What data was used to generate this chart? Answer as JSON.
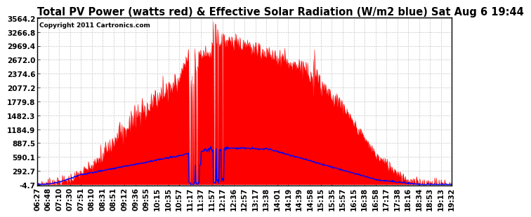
{
  "title": "Total PV Power (watts red) & Effective Solar Radiation (W/m2 blue) Sat Aug 6 19:44",
  "copyright": "Copyright 2011 Cartronics.com",
  "yticks": [
    3564.2,
    3266.8,
    2969.4,
    2672.0,
    2374.6,
    2077.2,
    1779.8,
    1482.3,
    1184.9,
    887.5,
    590.1,
    292.7,
    -4.7
  ],
  "ylim": [
    -4.7,
    3564.2
  ],
  "xtick_labels": [
    "06:27",
    "06:48",
    "07:10",
    "07:30",
    "07:51",
    "08:10",
    "08:31",
    "08:51",
    "09:12",
    "09:36",
    "09:55",
    "10:15",
    "10:35",
    "10:57",
    "11:17",
    "11:37",
    "11:57",
    "12:17",
    "12:36",
    "12:57",
    "13:17",
    "13:38",
    "14:01",
    "14:19",
    "14:39",
    "14:58",
    "15:15",
    "15:35",
    "15:57",
    "16:15",
    "16:38",
    "16:58",
    "17:17",
    "17:38",
    "18:16",
    "18:34",
    "18:53",
    "19:13",
    "19:32"
  ],
  "background_color": "#FFFFFF",
  "plot_bg_color": "#FFFFFF",
  "grid_color": "#C8C8C8",
  "red_color": "#FF0000",
  "blue_color": "#0000FF",
  "title_fontsize": 10.5,
  "tick_fontsize": 7.5
}
